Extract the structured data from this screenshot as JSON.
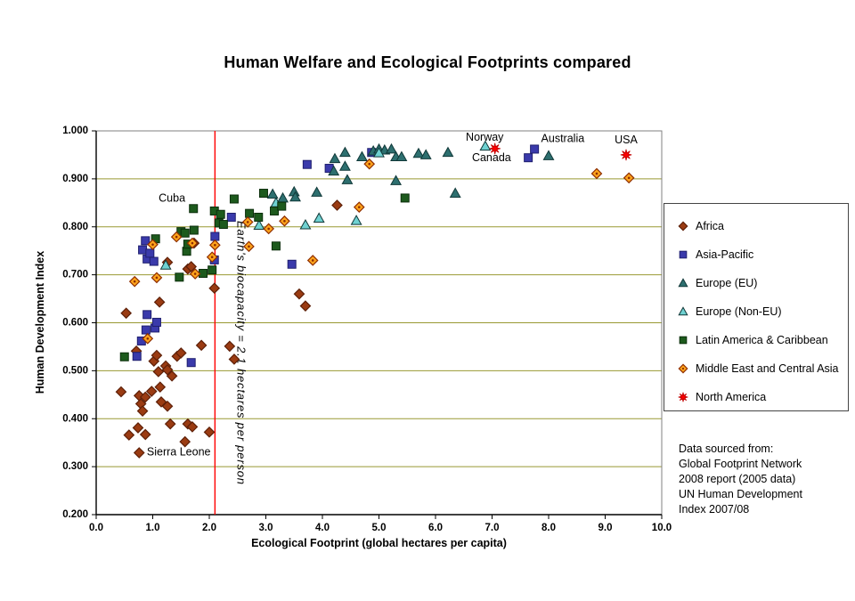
{
  "title": "Human Welfare and Ecological Footprints compared",
  "chart_data": {
    "type": "scatter",
    "title": "Human Welfare and Ecological Footprints compared",
    "xlabel": "Ecological Footprint (global hectares per capita)",
    "ylabel": "Human Development Index",
    "xlim": [
      0,
      10
    ],
    "ylim": [
      0.2,
      1.0
    ],
    "grid": "horizontal",
    "legend_position": "right",
    "x_ticks": [
      {
        "v": 0,
        "label": "0.0"
      },
      {
        "v": 1,
        "label": "1.0"
      },
      {
        "v": 2,
        "label": "2.0"
      },
      {
        "v": 3,
        "label": "3.0"
      },
      {
        "v": 4,
        "label": "4.0"
      },
      {
        "v": 5,
        "label": "5.0"
      },
      {
        "v": 6,
        "label": "6.0"
      },
      {
        "v": 7,
        "label": "7.0"
      },
      {
        "v": 8,
        "label": "8.0"
      },
      {
        "v": 9,
        "label": "9.0"
      },
      {
        "v": 10,
        "label": "10.0"
      }
    ],
    "y_ticks": [
      {
        "v": 0.2,
        "label": "0.200"
      },
      {
        "v": 0.3,
        "label": "0.300"
      },
      {
        "v": 0.4,
        "label": "0.400"
      },
      {
        "v": 0.5,
        "label": "0.500"
      },
      {
        "v": 0.6,
        "label": "0.600"
      },
      {
        "v": 0.7,
        "label": "0.700"
      },
      {
        "v": 0.8,
        "label": "0.800"
      },
      {
        "v": 0.9,
        "label": "0.900"
      },
      {
        "v": 1.0,
        "label": "1.000"
      }
    ],
    "colors": {
      "gridline": "#999933",
      "plot_border": "#808080",
      "axis": "#000000",
      "reference_line": "#FF0000"
    },
    "reference_line": {
      "x": 2.1,
      "label": "Earth's biocapacity = 2.1 hectares per person",
      "color": "#FF0000"
    },
    "annotations": [
      {
        "text": "Norway",
        "x": 6.87,
        "y": 0.986
      },
      {
        "text": "Canada",
        "x": 6.99,
        "y": 0.943
      },
      {
        "text": "Australia",
        "x": 8.25,
        "y": 0.983
      },
      {
        "text": "USA",
        "x": 9.37,
        "y": 0.98
      },
      {
        "text": "Cuba",
        "x": 1.34,
        "y": 0.859
      },
      {
        "text": "Sierra Leone",
        "x": 1.46,
        "y": 0.33
      }
    ],
    "series": [
      {
        "name": "Africa",
        "marker": "diamond",
        "fill": "#9A3B12",
        "stroke": "#5E2008",
        "points": [
          [
            0.44,
            0.456
          ],
          [
            0.53,
            0.62
          ],
          [
            0.58,
            0.366
          ],
          [
            0.71,
            0.541
          ],
          [
            0.74,
            0.381
          ],
          [
            0.76,
            0.448
          ],
          [
            0.76,
            0.329
          ],
          [
            0.79,
            0.431
          ],
          [
            0.82,
            0.416
          ],
          [
            0.87,
            0.367
          ],
          [
            0.87,
            0.445
          ],
          [
            0.98,
            0.457
          ],
          [
            1.02,
            0.52
          ],
          [
            1.07,
            0.532
          ],
          [
            1.1,
            0.498
          ],
          [
            1.12,
            0.643
          ],
          [
            1.13,
            0.466
          ],
          [
            1.15,
            0.435
          ],
          [
            1.23,
            0.51
          ],
          [
            1.26,
            0.502
          ],
          [
            1.26,
            0.426
          ],
          [
            1.26,
            0.726
          ],
          [
            1.31,
            0.389
          ],
          [
            1.34,
            0.489
          ],
          [
            1.43,
            0.53
          ],
          [
            1.5,
            0.537
          ],
          [
            1.57,
            0.352
          ],
          [
            1.62,
            0.389
          ],
          [
            1.62,
            0.712
          ],
          [
            1.7,
            0.383
          ],
          [
            1.68,
            0.717
          ],
          [
            1.73,
            0.766
          ],
          [
            1.86,
            0.553
          ],
          [
            2.0,
            0.372
          ],
          [
            2.09,
            0.672
          ],
          [
            2.36,
            0.551
          ],
          [
            2.44,
            0.524
          ],
          [
            3.59,
            0.66
          ],
          [
            3.7,
            0.635
          ],
          [
            4.26,
            0.845
          ]
        ]
      },
      {
        "name": "Asia-Pacific",
        "marker": "square",
        "fill": "#3A3AAB",
        "stroke": "#1F1F6E",
        "points": [
          [
            0.72,
            0.53
          ],
          [
            0.8,
            0.562
          ],
          [
            0.82,
            0.752
          ],
          [
            0.87,
            0.771
          ],
          [
            0.88,
            0.585
          ],
          [
            0.9,
            0.617
          ],
          [
            0.9,
            0.733
          ],
          [
            0.95,
            0.745
          ],
          [
            1.02,
            0.728
          ],
          [
            1.04,
            0.589
          ],
          [
            1.07,
            0.601
          ],
          [
            1.68,
            0.517
          ],
          [
            2.09,
            0.731
          ],
          [
            2.1,
            0.78
          ],
          [
            2.39,
            0.82
          ],
          [
            3.46,
            0.722
          ],
          [
            3.73,
            0.93
          ],
          [
            4.12,
            0.922
          ],
          [
            4.87,
            0.955
          ],
          [
            7.64,
            0.944
          ],
          [
            7.75,
            0.962
          ]
        ]
      },
      {
        "name": "Europe (EU)",
        "marker": "triangle",
        "fill": "#2D6F6F",
        "stroke": "#103838",
        "points": [
          [
            3.12,
            0.868
          ],
          [
            3.3,
            0.86
          ],
          [
            3.5,
            0.873
          ],
          [
            3.52,
            0.862
          ],
          [
            3.9,
            0.872
          ],
          [
            4.2,
            0.916
          ],
          [
            4.22,
            0.942
          ],
          [
            4.4,
            0.955
          ],
          [
            4.4,
            0.926
          ],
          [
            4.44,
            0.898
          ],
          [
            4.7,
            0.946
          ],
          [
            4.9,
            0.958
          ],
          [
            5.0,
            0.962
          ],
          [
            5.1,
            0.96
          ],
          [
            5.22,
            0.962
          ],
          [
            5.3,
            0.946
          ],
          [
            5.4,
            0.946
          ],
          [
            5.3,
            0.896
          ],
          [
            5.7,
            0.953
          ],
          [
            5.83,
            0.95
          ],
          [
            6.22,
            0.955
          ],
          [
            6.35,
            0.87
          ],
          [
            8.0,
            0.948
          ]
        ]
      },
      {
        "name": "Europe (Non-EU)",
        "marker": "triangle",
        "fill": "#6FD1D1",
        "stroke": "#103838",
        "points": [
          [
            1.23,
            0.72
          ],
          [
            2.88,
            0.803
          ],
          [
            3.18,
            0.85
          ],
          [
            3.7,
            0.804
          ],
          [
            3.94,
            0.818
          ],
          [
            4.6,
            0.813
          ],
          [
            5.0,
            0.954
          ],
          [
            6.88,
            0.968
          ]
        ]
      },
      {
        "name": "Latin America & Caribbean",
        "marker": "square",
        "fill": "#1D5A1D",
        "stroke": "#0B2E0B",
        "points": [
          [
            0.5,
            0.529
          ],
          [
            1.05,
            0.775
          ],
          [
            1.47,
            0.695
          ],
          [
            1.5,
            0.79
          ],
          [
            1.57,
            0.787
          ],
          [
            1.6,
            0.749
          ],
          [
            1.62,
            0.764
          ],
          [
            1.73,
            0.793
          ],
          [
            1.72,
            0.838
          ],
          [
            1.89,
            0.703
          ],
          [
            2.05,
            0.71
          ],
          [
            2.09,
            0.833
          ],
          [
            2.2,
            0.826
          ],
          [
            2.17,
            0.808
          ],
          [
            2.25,
            0.805
          ],
          [
            2.44,
            0.858
          ],
          [
            2.71,
            0.828
          ],
          [
            2.87,
            0.82
          ],
          [
            2.96,
            0.87
          ],
          [
            3.15,
            0.833
          ],
          [
            3.28,
            0.843
          ],
          [
            3.18,
            0.76
          ],
          [
            5.46,
            0.86
          ]
        ]
      },
      {
        "name": "Middle East and Central Asia",
        "marker": "diamond-dot",
        "fill": "#FFA41C",
        "stroke": "#8E2E00",
        "points": [
          [
            0.68,
            0.686
          ],
          [
            0.91,
            0.567
          ],
          [
            1.0,
            0.763
          ],
          [
            1.07,
            0.694
          ],
          [
            1.42,
            0.779
          ],
          [
            1.7,
            0.766
          ],
          [
            1.75,
            0.702
          ],
          [
            2.05,
            0.737
          ],
          [
            2.1,
            0.762
          ],
          [
            2.68,
            0.81
          ],
          [
            2.7,
            0.759
          ],
          [
            3.05,
            0.796
          ],
          [
            3.33,
            0.812
          ],
          [
            3.83,
            0.73
          ],
          [
            4.65,
            0.841
          ],
          [
            4.83,
            0.931
          ],
          [
            8.85,
            0.911
          ],
          [
            9.42,
            0.902
          ]
        ]
      },
      {
        "name": "North America",
        "marker": "star",
        "fill": "#FF0000",
        "stroke": "#C00000",
        "points": [
          [
            7.05,
            0.963
          ],
          [
            9.37,
            0.95
          ]
        ]
      }
    ]
  },
  "source_note": {
    "lines": [
      "Data sourced from:",
      "Global Footprint Network",
      "2008 report (2005 data)",
      "UN Human Development",
      "Index 2007/08"
    ]
  }
}
